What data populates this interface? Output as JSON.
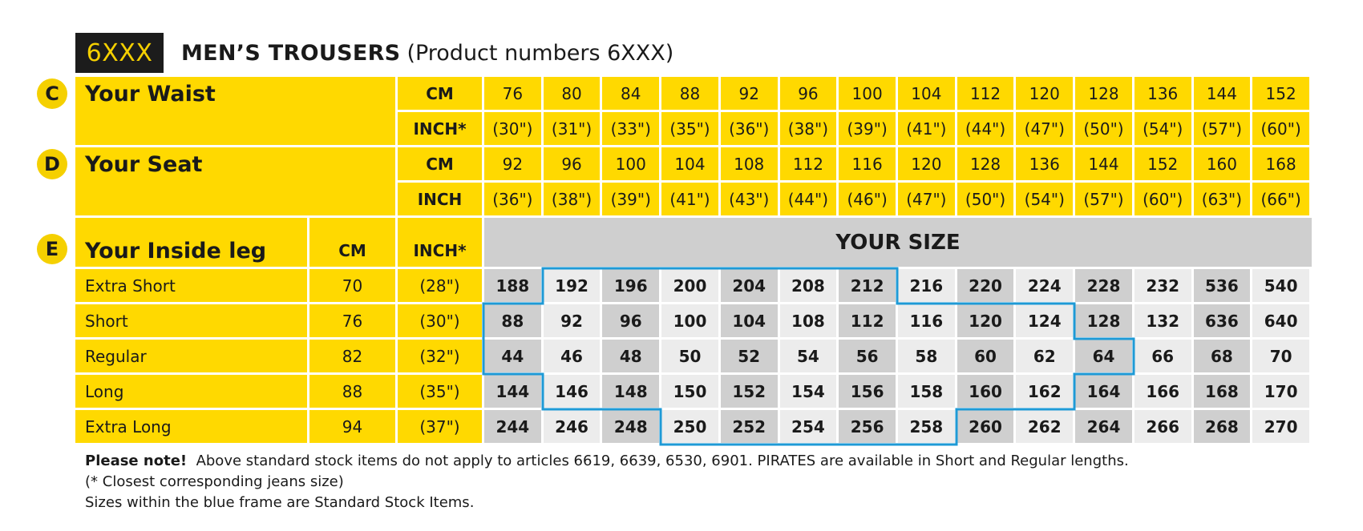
{
  "header": {
    "badge": "6XXX",
    "title": "MEN’S TROUSERS",
    "subtitle": "(Product numbers 6XXX)"
  },
  "sections": {
    "waist": {
      "letter": "C",
      "label": "Your Waist"
    },
    "seat": {
      "letter": "D",
      "label": "Your Seat"
    },
    "leg": {
      "letter": "E",
      "label": "Your Inside leg"
    }
  },
  "units": {
    "waist_cm": "CM",
    "waist_inch": "INCH*",
    "seat_cm": "CM",
    "seat_inch": "INCH",
    "leg_cm": "CM",
    "leg_inch": "INCH*"
  },
  "waist": {
    "cm": [
      "76",
      "80",
      "84",
      "88",
      "92",
      "96",
      "100",
      "104",
      "112",
      "120",
      "128",
      "136",
      "144",
      "152"
    ],
    "inch": [
      "(30\")",
      "(31\")",
      "(33\")",
      "(35\")",
      "(36\")",
      "(38\")",
      "(39\")",
      "(41\")",
      "(44\")",
      "(47\")",
      "(50\")",
      "(54\")",
      "(57\")",
      "(60\")"
    ]
  },
  "seat": {
    "cm": [
      "92",
      "96",
      "100",
      "104",
      "108",
      "112",
      "116",
      "120",
      "128",
      "136",
      "144",
      "152",
      "160",
      "168"
    ],
    "inch": [
      "(36\")",
      "(38\")",
      "(39\")",
      "(41\")",
      "(43\")",
      "(44\")",
      "(46\")",
      "(47\")",
      "(50\")",
      "(54\")",
      "(57\")",
      "(60\")",
      "(63\")",
      "(66\")"
    ]
  },
  "your_size_label": "YOUR SIZE",
  "legs": [
    {
      "label": "Extra Short",
      "cm": "70",
      "inch": "(28\")",
      "sizes": [
        "188",
        "192",
        "196",
        "200",
        "204",
        "208",
        "212",
        "216",
        "220",
        "224",
        "228",
        "232",
        "536",
        "540"
      ]
    },
    {
      "label": "Short",
      "cm": "76",
      "inch": "(30\")",
      "sizes": [
        "88",
        "92",
        "96",
        "100",
        "104",
        "108",
        "112",
        "116",
        "120",
        "124",
        "128",
        "132",
        "636",
        "640"
      ]
    },
    {
      "label": "Regular",
      "cm": "82",
      "inch": "(32\")",
      "sizes": [
        "44",
        "46",
        "48",
        "50",
        "52",
        "54",
        "56",
        "58",
        "60",
        "62",
        "64",
        "66",
        "68",
        "70"
      ]
    },
    {
      "label": "Long",
      "cm": "88",
      "inch": "(35\")",
      "sizes": [
        "144",
        "146",
        "148",
        "150",
        "152",
        "154",
        "156",
        "158",
        "160",
        "162",
        "164",
        "166",
        "168",
        "170"
      ]
    },
    {
      "label": "Extra Long",
      "cm": "94",
      "inch": "(37\")",
      "sizes": [
        "244",
        "246",
        "248",
        "250",
        "252",
        "254",
        "256",
        "258",
        "260",
        "262",
        "264",
        "266",
        "268",
        "270"
      ]
    }
  ],
  "standard_stock_frame_color": "#1e9ad6",
  "notes": {
    "line1_bold": "Please note!",
    "line1": "Above standard stock items do not apply to articles 6619, 6639, 6530, 6901. PIRATES are available in Short and Regular lengths.",
    "line2": "(* Closest corresponding jeans size)",
    "line3": "Sizes within the blue frame are Standard Stock Items."
  },
  "colors": {
    "yellow": "#ffd900",
    "grey_dark": "#cfcfcf",
    "grey_light": "#ececec",
    "badge_bg": "#1c1c1c"
  }
}
